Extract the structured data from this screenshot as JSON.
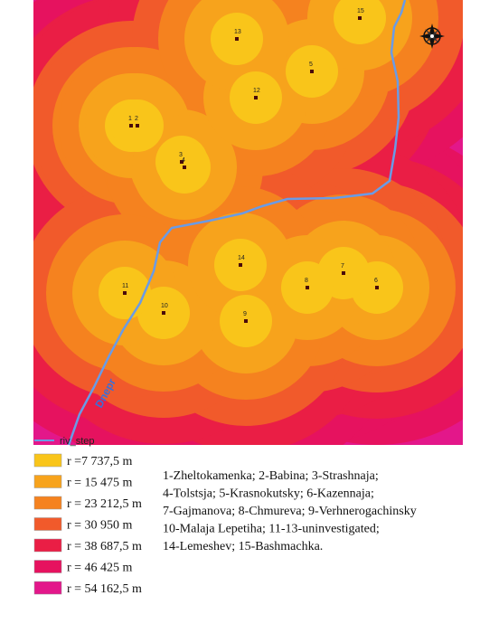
{
  "map": {
    "points": [
      {
        "label": "1"
      },
      {
        "label": "2"
      },
      {
        "label": "3"
      },
      {
        "label": "4"
      },
      {
        "label": "5"
      },
      {
        "label": "6"
      },
      {
        "label": "7"
      },
      {
        "label": "8"
      },
      {
        "label": "9"
      },
      {
        "label": "10"
      },
      {
        "label": "11"
      },
      {
        "label": "12"
      },
      {
        "label": "13"
      },
      {
        "label": "14"
      },
      {
        "label": "15"
      }
    ],
    "river_label": "Dnepr",
    "river_color": "#6a9be6"
  },
  "legend": {
    "river": "riv_step",
    "zones": [
      {
        "label": "r =7 737,5 m",
        "color": "#f9c51a"
      },
      {
        "label": "r = 15 475 m",
        "color": "#f7a31c"
      },
      {
        "label": "r = 23 212,5 m",
        "color": "#f5821f"
      },
      {
        "label": "r = 30 950 m",
        "color": "#f15a2b"
      },
      {
        "label": "r = 38 687,5 m",
        "color": "#ea1e45"
      },
      {
        "label": "r = 46 425 m",
        "color": "#e6125f"
      },
      {
        "label": "r = 54 162,5 m",
        "color": "#e3178a"
      }
    ]
  },
  "description": {
    "lines": [
      "1-Zheltokamenka; 2-Babina; 3-Strashnaja;",
      " 4-Tolstsja; 5-Krasnokutsky; 6-Kazennaja;",
      "7-Gajmanova; 8-Chmureva; 9-Verhnerogachinsky",
      "10-Malaja Lepetiha; 11-13-uninvestigated;",
      "14-Lemeshev; 15-Bashmachka."
    ]
  }
}
